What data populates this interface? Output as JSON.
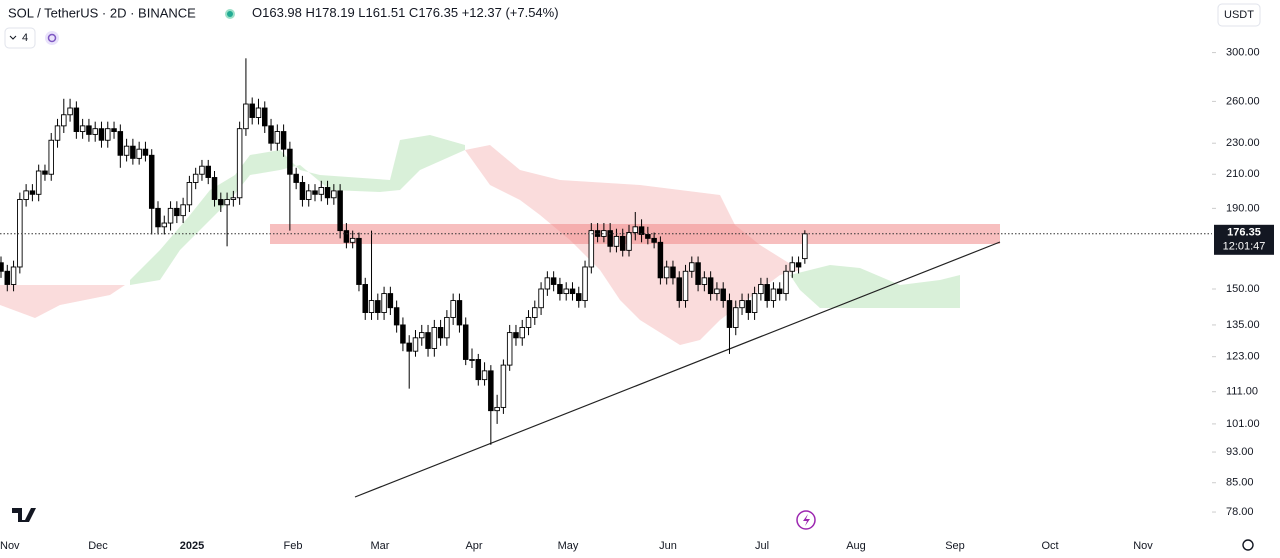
{
  "chart_data": {
    "type": "candlestick",
    "title": "SOL / TetherUS · 2D · BINANCE",
    "ohlc_prefixes": [
      "O",
      "H",
      "L",
      "C"
    ],
    "change": "+12.37 (+7.54%)",
    "interval_count": "4",
    "currency": "USDT",
    "countdown": "12:01:47",
    "up_color": "#ffffff",
    "down_color": "#000000",
    "outline_color": "#000000",
    "log_scale": true,
    "ylim": [
      74,
      350
    ],
    "yticks": [
      {
        "value": 300,
        "label": "300.00"
      },
      {
        "value": 260,
        "label": "260.00"
      },
      {
        "value": 230,
        "label": "230.00"
      },
      {
        "value": 210,
        "label": "210.00"
      },
      {
        "value": 190,
        "label": "190.00"
      },
      {
        "value": 150,
        "label": "150.00"
      },
      {
        "value": 135,
        "label": "135.00"
      },
      {
        "value": 123,
        "label": "123.00"
      },
      {
        "value": 111,
        "label": "111.00"
      },
      {
        "value": 101,
        "label": "101.00"
      },
      {
        "value": 93,
        "label": "93.00"
      },
      {
        "value": 85,
        "label": "85.00"
      },
      {
        "value": 78,
        "label": "78.00"
      }
    ],
    "x_labels": [
      "Nov",
      "Dec",
      "2025",
      "Feb",
      "Mar",
      "Apr",
      "May",
      "Jun",
      "Jul",
      "Aug",
      "Sep",
      "Oct",
      "Nov"
    ],
    "ohlc": [
      [
        162,
        165,
        155,
        158
      ],
      [
        158,
        161,
        149,
        152
      ],
      [
        152,
        163,
        149,
        160
      ],
      [
        160,
        199,
        157,
        195
      ],
      [
        195,
        204,
        191,
        200
      ],
      [
        200,
        204,
        194,
        198
      ],
      [
        198,
        216,
        194,
        212
      ],
      [
        212,
        216,
        206,
        210
      ],
      [
        210,
        237,
        206,
        232
      ],
      [
        232,
        247,
        227,
        242
      ],
      [
        242,
        262,
        237,
        250
      ],
      [
        250,
        262,
        245,
        255
      ],
      [
        255,
        260,
        233,
        238
      ],
      [
        238,
        247,
        233,
        242
      ],
      [
        242,
        247,
        231,
        236
      ],
      [
        236,
        245,
        231,
        240
      ],
      [
        240,
        245,
        227,
        232
      ],
      [
        232,
        245,
        227,
        240
      ],
      [
        240,
        245,
        233,
        238
      ],
      [
        238,
        243,
        214,
        222
      ],
      [
        222,
        233,
        218,
        228
      ],
      [
        228,
        233,
        216,
        220
      ],
      [
        220,
        231,
        216,
        226
      ],
      [
        226,
        231,
        218,
        222
      ],
      [
        222,
        226,
        176,
        190
      ],
      [
        190,
        194,
        176,
        180
      ],
      [
        180,
        186,
        176,
        182
      ],
      [
        182,
        194,
        178,
        190
      ],
      [
        190,
        194,
        182,
        186
      ],
      [
        186,
        196,
        182,
        192
      ],
      [
        192,
        209,
        188,
        205
      ],
      [
        205,
        214,
        201,
        210
      ],
      [
        210,
        219,
        206,
        215
      ],
      [
        215,
        219,
        204,
        208
      ],
      [
        208,
        212,
        191,
        195
      ],
      [
        195,
        199,
        188,
        192
      ],
      [
        192,
        199,
        170,
        195
      ],
      [
        195,
        200,
        191,
        196
      ],
      [
        196,
        245,
        192,
        240
      ],
      [
        240,
        295,
        235,
        258
      ],
      [
        258,
        263,
        243,
        248
      ],
      [
        248,
        262,
        243,
        255
      ],
      [
        255,
        260,
        237,
        242
      ],
      [
        242,
        247,
        225,
        230
      ],
      [
        230,
        243,
        225,
        238
      ],
      [
        238,
        243,
        221,
        226
      ],
      [
        226,
        231,
        178,
        210
      ],
      [
        210,
        214,
        201,
        205
      ],
      [
        205,
        209,
        191,
        195
      ],
      [
        195,
        204,
        191,
        200
      ],
      [
        200,
        204,
        194,
        198
      ],
      [
        198,
        206,
        194,
        202
      ],
      [
        202,
        206,
        192,
        196
      ],
      [
        196,
        204,
        192,
        200
      ],
      [
        200,
        204,
        174,
        178
      ],
      [
        178,
        182,
        169,
        172
      ],
      [
        172,
        178,
        169,
        174
      ],
      [
        174,
        177,
        149,
        152
      ],
      [
        152,
        155,
        137,
        140
      ],
      [
        140,
        178,
        137,
        145
      ],
      [
        145,
        148,
        137,
        140
      ],
      [
        140,
        151,
        137,
        148
      ],
      [
        148,
        151,
        139,
        142
      ],
      [
        142,
        145,
        132,
        135
      ],
      [
        135,
        138,
        125,
        128
      ],
      [
        128,
        131,
        112,
        125
      ],
      [
        125,
        133,
        123,
        130
      ],
      [
        130,
        135,
        127,
        132
      ],
      [
        132,
        135,
        123,
        126
      ],
      [
        126,
        137,
        123,
        134
      ],
      [
        134,
        137,
        127,
        130
      ],
      [
        130,
        141,
        127,
        138
      ],
      [
        138,
        148,
        135,
        145
      ],
      [
        145,
        148,
        132,
        135
      ],
      [
        135,
        138,
        120,
        122
      ],
      [
        122,
        126,
        119,
        122
      ],
      [
        122,
        124,
        113,
        115
      ],
      [
        115,
        121,
        113,
        118
      ],
      [
        118,
        120,
        95,
        105
      ],
      [
        105,
        110,
        101,
        106
      ],
      [
        106,
        122,
        104,
        120
      ],
      [
        120,
        135,
        118,
        132
      ],
      [
        132,
        135,
        127,
        130
      ],
      [
        130,
        137,
        127,
        134
      ],
      [
        134,
        141,
        131,
        138
      ],
      [
        138,
        145,
        135,
        142
      ],
      [
        142,
        153,
        139,
        150
      ],
      [
        150,
        158,
        147,
        155
      ],
      [
        155,
        158,
        149,
        152
      ],
      [
        152,
        155,
        145,
        148
      ],
      [
        148,
        153,
        145,
        150
      ],
      [
        150,
        153,
        145,
        148
      ],
      [
        148,
        151,
        142,
        145
      ],
      [
        145,
        163,
        142,
        160
      ],
      [
        160,
        182,
        157,
        178
      ],
      [
        178,
        182,
        172,
        175
      ],
      [
        175,
        182,
        172,
        178
      ],
      [
        178,
        182,
        167,
        170
      ],
      [
        170,
        179,
        167,
        175
      ],
      [
        175,
        179,
        165,
        168
      ],
      [
        168,
        181,
        165,
        177
      ],
      [
        177,
        188,
        173,
        180
      ],
      [
        180,
        184,
        172,
        176
      ],
      [
        176,
        180,
        171,
        174
      ],
      [
        174,
        177,
        169,
        172
      ],
      [
        172,
        175,
        152,
        155
      ],
      [
        155,
        163,
        152,
        160
      ],
      [
        160,
        163,
        152,
        155
      ],
      [
        155,
        158,
        142,
        145
      ],
      [
        145,
        161,
        142,
        158
      ],
      [
        158,
        165,
        155,
        162
      ],
      [
        162,
        165,
        149,
        152
      ],
      [
        152,
        158,
        149,
        155
      ],
      [
        155,
        158,
        145,
        148
      ],
      [
        148,
        153,
        145,
        150
      ],
      [
        150,
        153,
        142,
        145
      ],
      [
        145,
        148,
        124,
        134
      ],
      [
        134,
        145,
        131,
        142
      ],
      [
        142,
        148,
        139,
        145
      ],
      [
        145,
        148,
        137,
        140
      ],
      [
        140,
        151,
        137,
        148
      ],
      [
        148,
        155,
        145,
        152
      ],
      [
        152,
        155,
        142,
        145
      ],
      [
        145,
        153,
        142,
        150
      ],
      [
        150,
        153,
        145,
        148
      ],
      [
        148,
        161,
        145,
        158
      ],
      [
        158,
        165,
        155,
        162
      ],
      [
        162,
        165,
        157,
        160
      ],
      [
        163.98,
        178.19,
        161.51,
        176.35
      ]
    ]
  }
}
